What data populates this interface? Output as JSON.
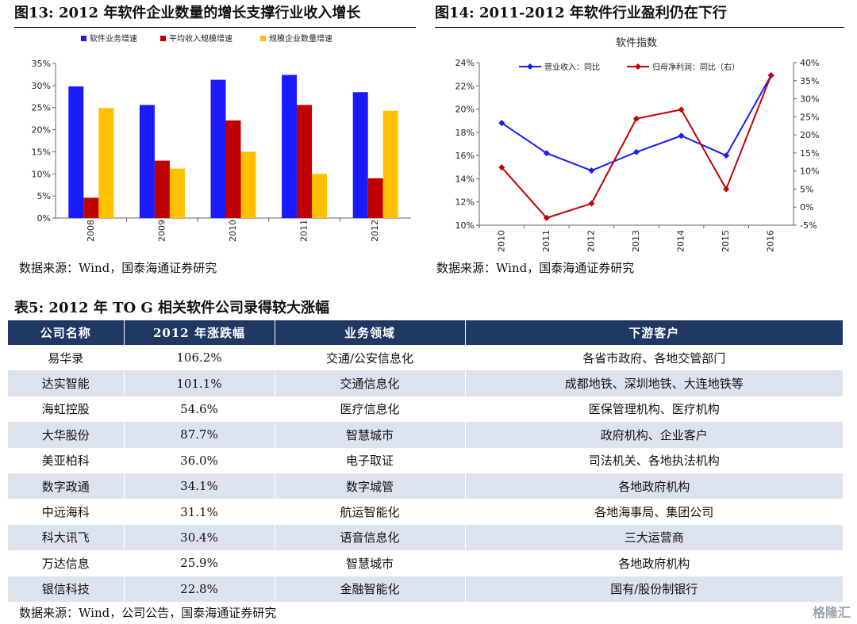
{
  "fig13": {
    "title": "图13:  2012 年软件企业数量的增长支撑行业收入增长",
    "source": "数据来源：Wind，国泰海通证券研究"
  },
  "fig14": {
    "title": "图14:  2011-2012 年软件行业盈利仍在下行",
    "source": "数据来源：Wind，国泰海通证券研究"
  },
  "table5": {
    "title": "表5:  2012 年 TO G 相关软件公司录得较大涨幅",
    "headers": [
      "公司名称",
      "2012 年涨跌幅",
      "业务领域",
      "下游客户"
    ],
    "rows": [
      [
        "易华录",
        "106.2%",
        "交通/公安信息化",
        "各省市政府、各地交管部门"
      ],
      [
        "达实智能",
        "101.1%",
        "交通信息化",
        "成都地铁、深圳地铁、大连地铁等"
      ],
      [
        "海虹控股",
        "54.6%",
        "医疗信息化",
        "医保管理机构、医疗机构"
      ],
      [
        "大华股份",
        "87.7%",
        "智慧城市",
        "政府机构、企业客户"
      ],
      [
        "美亚柏科",
        "36.0%",
        "电子取证",
        "司法机关、各地执法机构"
      ],
      [
        "数字政通",
        "34.1%",
        "数字城管",
        "各地政府机构"
      ],
      [
        "中远海科",
        "31.1%",
        "航运智能化",
        "各地海事局、集团公司"
      ],
      [
        "科大讯飞",
        "30.4%",
        "语音信息化",
        "三大运营商"
      ],
      [
        "万达信息",
        "25.9%",
        "智慧城市",
        "各地政府机构"
      ],
      [
        "银信科技",
        "22.8%",
        "金融智能化",
        "国有/股份制银行"
      ]
    ],
    "source": "数据来源：Wind，公司公告，国泰海通证券研究"
  },
  "watermark": "格隆汇",
  "chart_data": [
    {
      "type": "bar",
      "categories": [
        "2008",
        "2009",
        "2010",
        "2011",
        "2012"
      ],
      "series": [
        {
          "name": "软件业务增速",
          "color": "#1a1aff",
          "values": [
            29.8,
            25.6,
            31.3,
            32.4,
            28.5
          ]
        },
        {
          "name": "平均收入规模增速",
          "color": "#c00000",
          "values": [
            4.6,
            13.0,
            22.1,
            25.6,
            9.0
          ]
        },
        {
          "name": "规模企业数量增速",
          "color": "#ffc000",
          "values": [
            24.9,
            11.2,
            15.0,
            10.0,
            24.3
          ]
        }
      ],
      "ylim": [
        0,
        35
      ],
      "yticks": [
        "0%",
        "5%",
        "10%",
        "15%",
        "20%",
        "25%",
        "30%",
        "35%"
      ],
      "legend": "top",
      "grid": false
    },
    {
      "type": "line",
      "title": "软件指数",
      "x": [
        "2010",
        "2011",
        "2012",
        "2013",
        "2014",
        "2015",
        "2016"
      ],
      "series": [
        {
          "name": "营业收入：同比",
          "color": "#1a1aff",
          "axis": "left",
          "values": [
            18.8,
            16.2,
            14.7,
            16.3,
            17.7,
            16.0,
            22.9
          ]
        },
        {
          "name": "归母净利润：同比（右）",
          "color": "#c00000",
          "axis": "right",
          "values": [
            11.0,
            -3.0,
            1.0,
            24.5,
            27.0,
            5.0,
            36.5
          ]
        }
      ],
      "ylim_left": [
        10,
        24
      ],
      "ylim_right": [
        -5,
        40
      ],
      "yticks_left": [
        "10%",
        "12%",
        "14%",
        "16%",
        "18%",
        "20%",
        "22%",
        "24%"
      ],
      "yticks_right": [
        "-5%",
        "0%",
        "5%",
        "10%",
        "15%",
        "20%",
        "25%",
        "30%",
        "35%",
        "40%"
      ],
      "legend": "top",
      "grid": false
    }
  ]
}
